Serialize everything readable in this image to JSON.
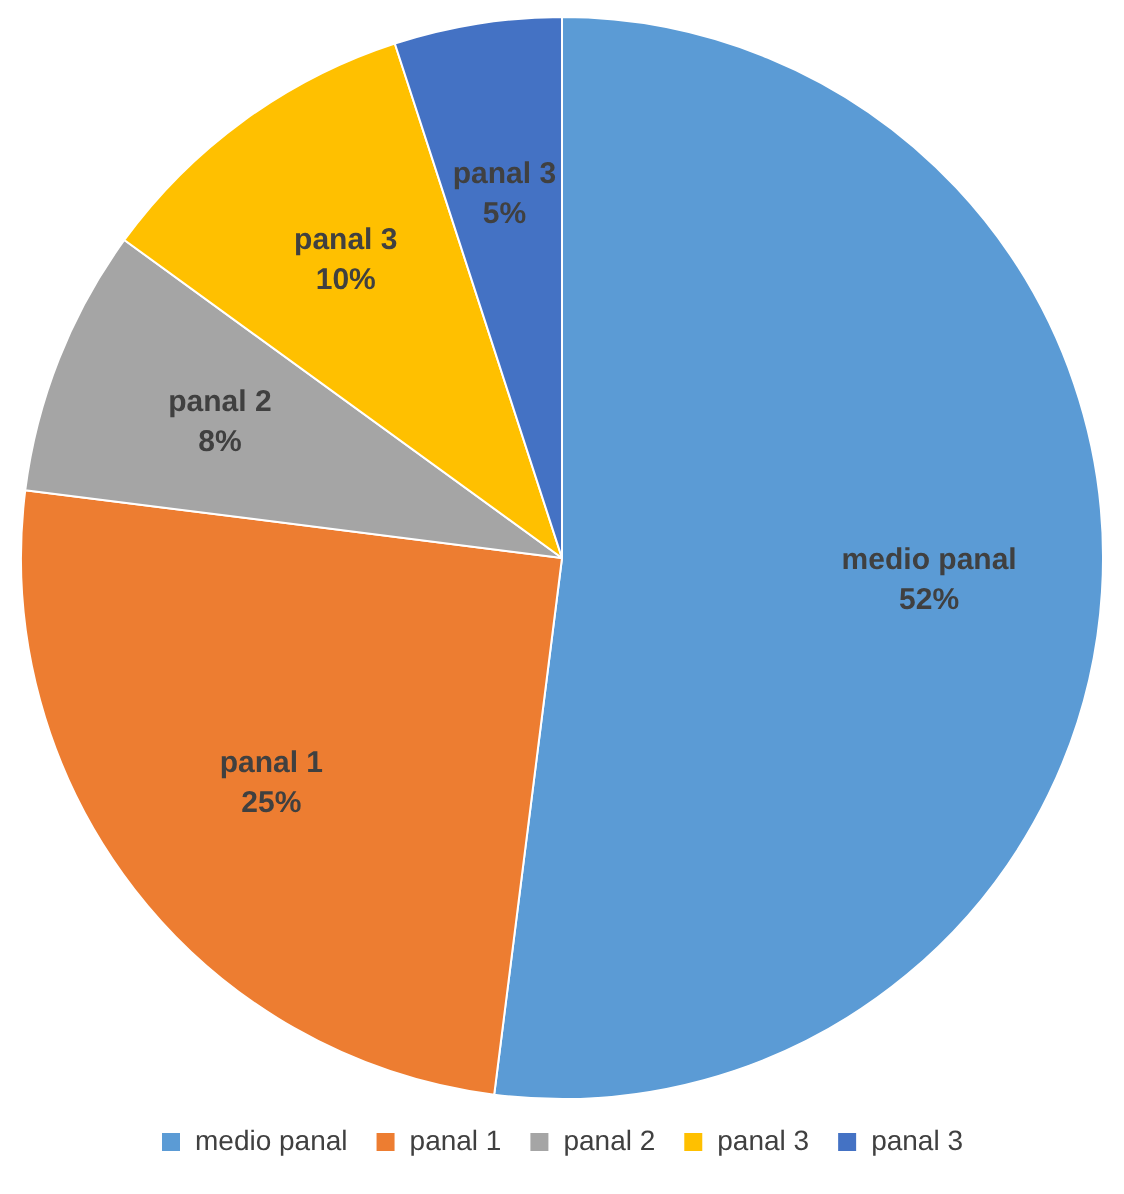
{
  "chart_data": {
    "type": "pie",
    "categories": [
      "medio panal",
      "panal 1",
      "panal 2",
      "panal 3",
      "panal 3"
    ],
    "values": [
      52,
      25,
      8,
      10,
      5
    ],
    "value_labels": [
      "52%",
      "25%",
      "8%",
      "10%",
      "5%"
    ],
    "colors": [
      "#5b9bd5",
      "#ed7d31",
      "#a5a5a5",
      "#ffc000",
      "#4472c4"
    ],
    "legend": "bottom"
  }
}
